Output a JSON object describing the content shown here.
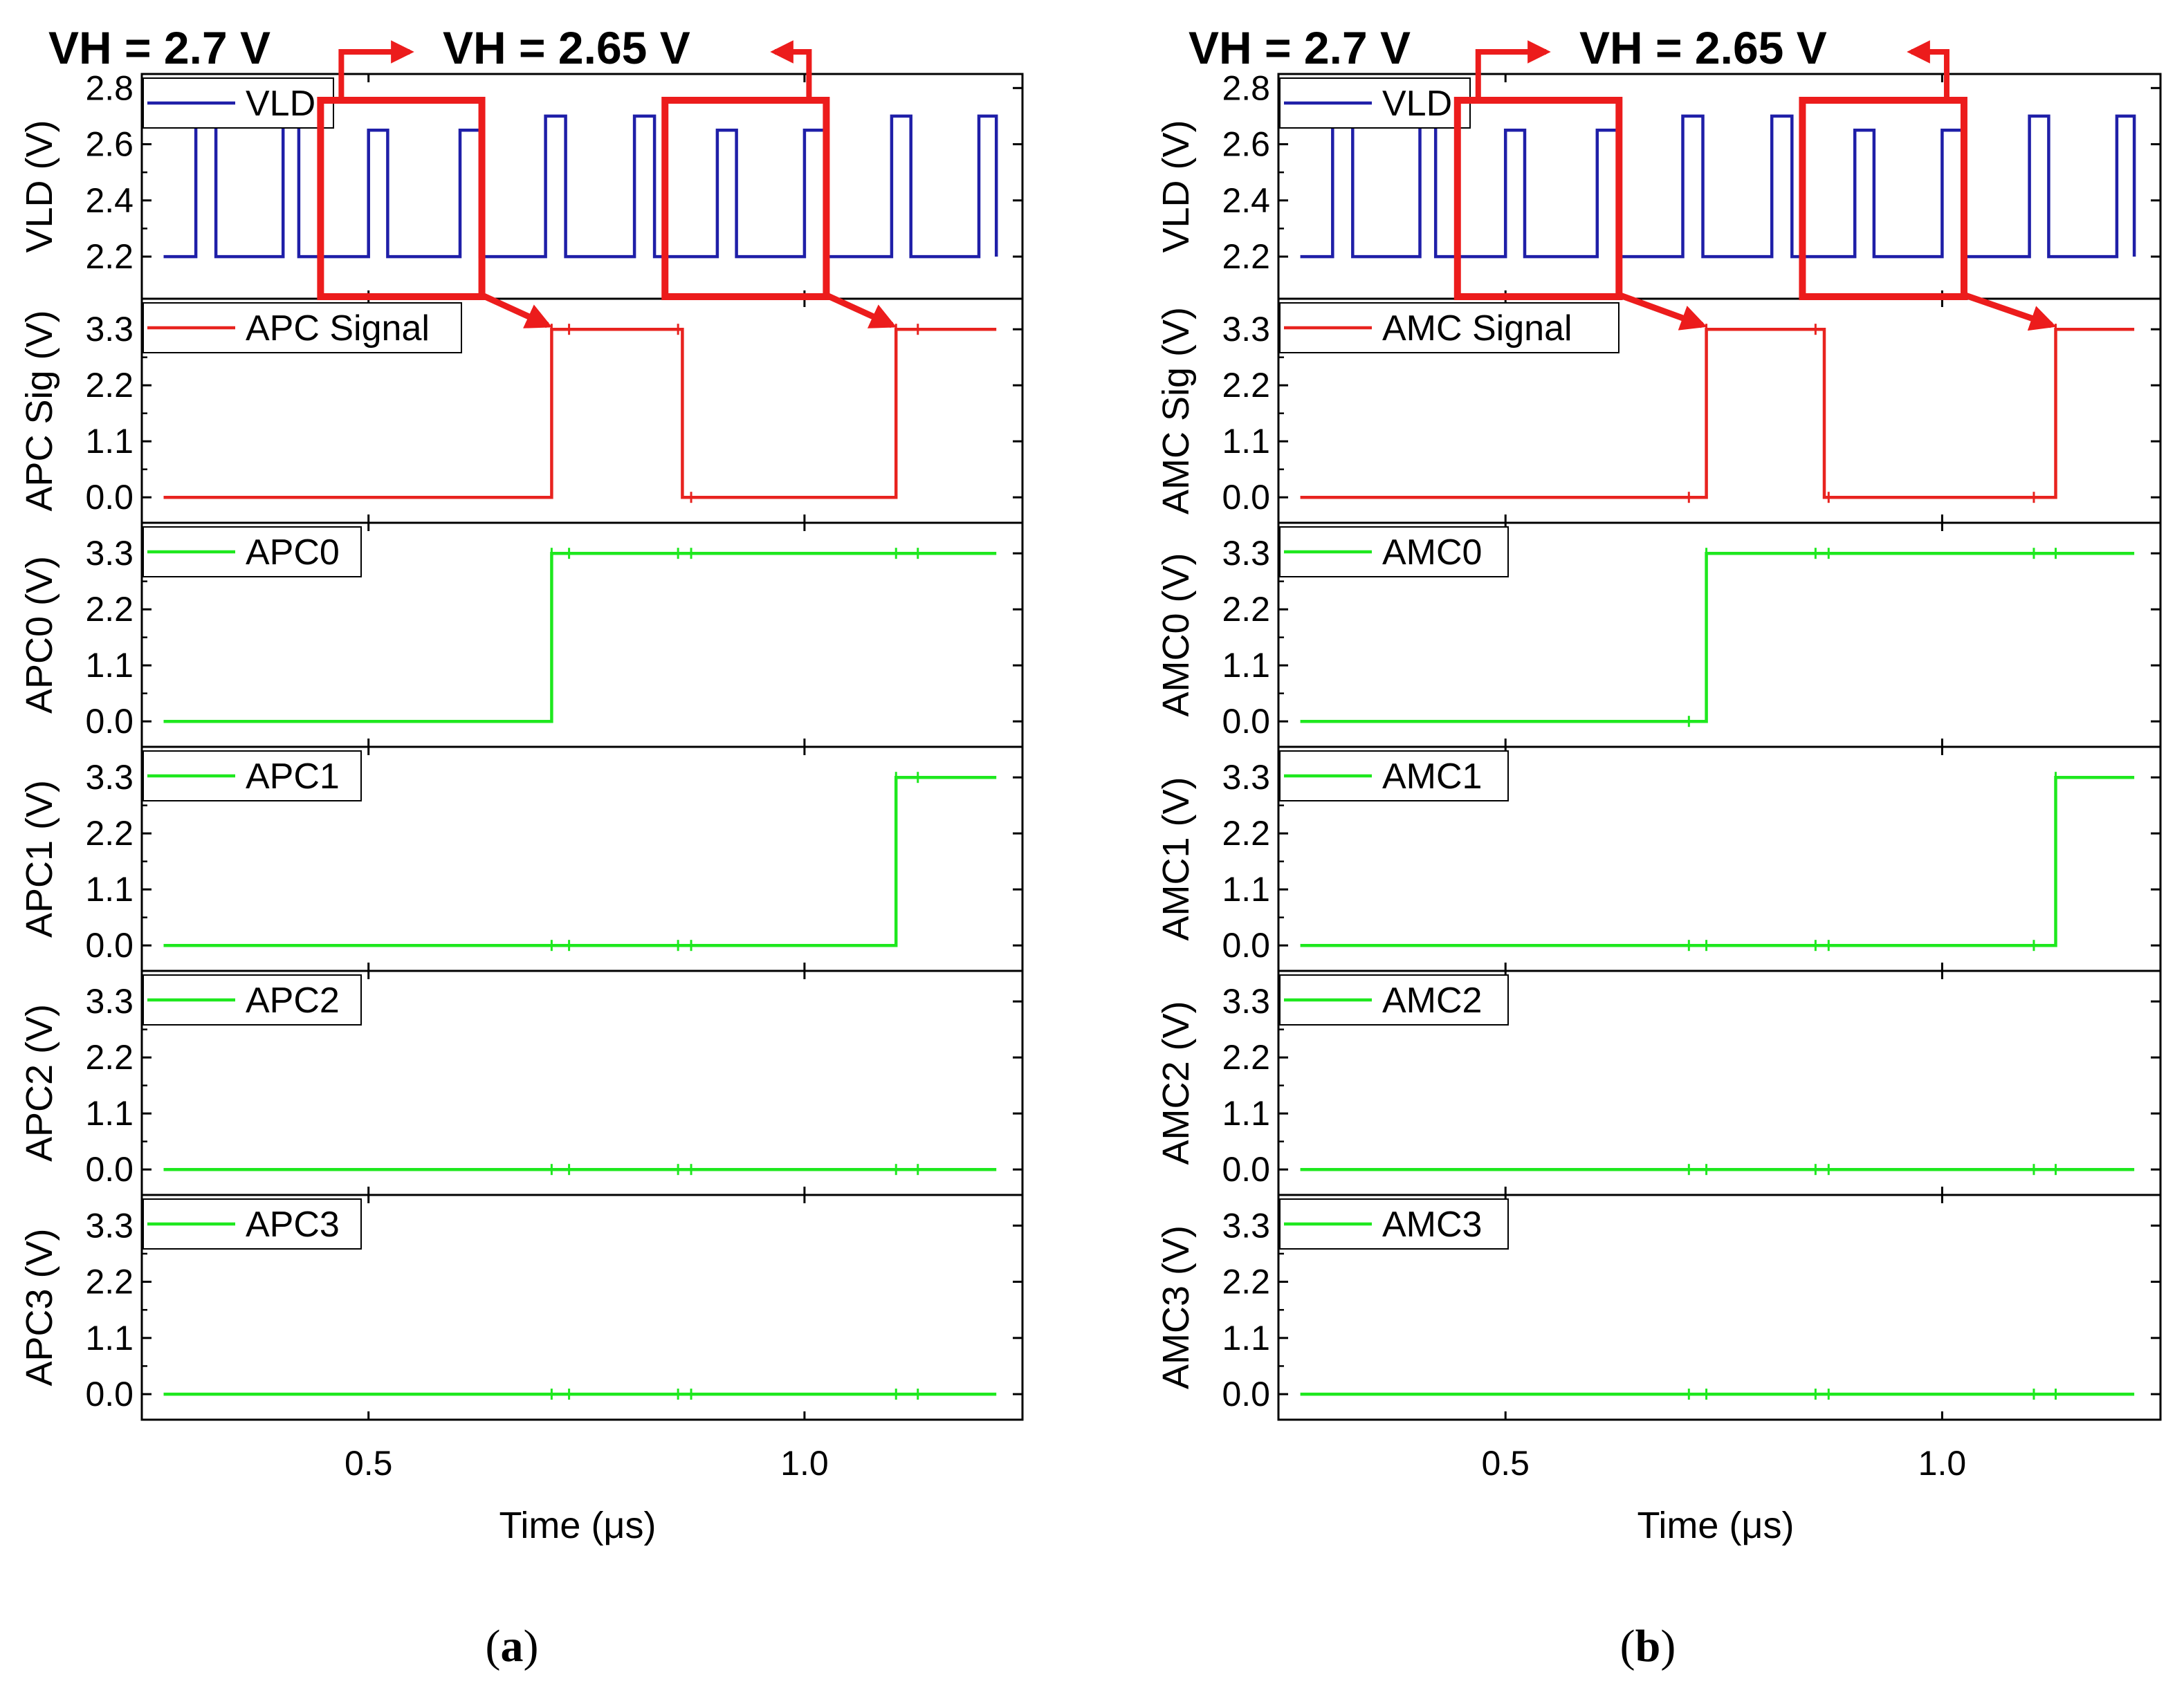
{
  "figure": {
    "captions": [
      "(a)",
      "(b)"
    ],
    "colors": {
      "vld": "#1f1fa8",
      "signal": "#e8231f",
      "bit": "#1ee81e",
      "highlight": "#ec1c1c",
      "axis": "#000000"
    }
  },
  "chart_data": [
    {
      "panel": "a",
      "caption_letter": "a",
      "annotations": {
        "vh_left": "VH = 2.7 V",
        "vh_right": "VH = 2.65 V"
      },
      "highlight_windows_us": [
        [
          0.445,
          0.63
        ],
        [
          0.84,
          1.025
        ]
      ],
      "xaxis": {
        "title": "Time (μs)",
        "xlim": [
          0.24,
          1.25
        ],
        "ticks": [
          0.5,
          1.0
        ],
        "tick_labels": [
          "0.5",
          "1.0"
        ]
      },
      "rows": [
        {
          "id": "vld",
          "type": "line",
          "legend": "VLD",
          "ylabel": "VLD (V)",
          "color_key": "vld",
          "ylim": [
            2.05,
            2.85
          ],
          "yticks": [
            2.2,
            2.4,
            2.6,
            2.8
          ],
          "ytick_labels": [
            "2.2",
            "2.4",
            "2.6",
            "2.8"
          ],
          "low": 2.2,
          "pulses": [
            {
              "start": 0.302,
              "end": 0.325,
              "high": 2.7
            },
            {
              "start": 0.402,
              "end": 0.42,
              "high": 2.7
            },
            {
              "start": 0.5,
              "end": 0.522,
              "high": 2.65
            },
            {
              "start": 0.605,
              "end": 0.628,
              "high": 2.65
            },
            {
              "start": 0.703,
              "end": 0.726,
              "high": 2.7
            },
            {
              "start": 0.805,
              "end": 0.828,
              "high": 2.7
            },
            {
              "start": 0.9,
              "end": 0.922,
              "high": 2.65
            },
            {
              "start": 1.0,
              "end": 1.024,
              "high": 2.65
            },
            {
              "start": 1.1,
              "end": 1.122,
              "high": 2.7
            },
            {
              "start": 1.2,
              "end": 1.22,
              "high": 2.7
            }
          ],
          "x_start": 0.265,
          "x_end": 1.22
        },
        {
          "id": "signal",
          "type": "line",
          "legend": "APC Signal",
          "ylabel": "APC Sig (V)",
          "color_key": "signal",
          "ylim": [
            -0.5,
            3.9
          ],
          "yticks": [
            0.0,
            1.1,
            2.2,
            3.3
          ],
          "ytick_labels": [
            "0.0",
            "1.1",
            "2.2",
            "3.3"
          ],
          "steps": [
            [
              0.265,
              0.0
            ],
            [
              0.71,
              3.3
            ],
            [
              0.86,
              0.0
            ],
            [
              1.105,
              3.3
            ]
          ],
          "x_end": 1.22
        },
        {
          "id": "bit0",
          "type": "line",
          "legend": "APC0",
          "ylabel": "APC0 (V)",
          "color_key": "bit",
          "ylim": [
            -0.5,
            3.9
          ],
          "yticks": [
            0.0,
            1.1,
            2.2,
            3.3
          ],
          "ytick_labels": [
            "0.0",
            "1.1",
            "2.2",
            "3.3"
          ],
          "steps": [
            [
              0.265,
              0.0
            ],
            [
              0.71,
              3.3
            ]
          ],
          "x_end": 1.22
        },
        {
          "id": "bit1",
          "type": "line",
          "legend": "APC1",
          "ylabel": "APC1 (V)",
          "color_key": "bit",
          "ylim": [
            -0.5,
            3.9
          ],
          "yticks": [
            0.0,
            1.1,
            2.2,
            3.3
          ],
          "ytick_labels": [
            "0.0",
            "1.1",
            "2.2",
            "3.3"
          ],
          "steps": [
            [
              0.265,
              0.0
            ],
            [
              1.105,
              3.3
            ]
          ],
          "x_end": 1.22
        },
        {
          "id": "bit2",
          "type": "line",
          "legend": "APC2",
          "ylabel": "APC2 (V)",
          "color_key": "bit",
          "ylim": [
            -0.5,
            3.9
          ],
          "yticks": [
            0.0,
            1.1,
            2.2,
            3.3
          ],
          "ytick_labels": [
            "0.0",
            "1.1",
            "2.2",
            "3.3"
          ],
          "steps": [
            [
              0.265,
              0.0
            ]
          ],
          "x_end": 1.22
        },
        {
          "id": "bit3",
          "type": "line",
          "legend": "APC3",
          "ylabel": "APC3 (V)",
          "color_key": "bit",
          "ylim": [
            -0.5,
            3.9
          ],
          "yticks": [
            0.0,
            1.1,
            2.2,
            3.3
          ],
          "ytick_labels": [
            "0.0",
            "1.1",
            "2.2",
            "3.3"
          ],
          "steps": [
            [
              0.265,
              0.0
            ]
          ],
          "x_end": 1.22
        }
      ]
    },
    {
      "panel": "b",
      "caption_letter": "b",
      "annotations": {
        "vh_left": "VH = 2.7 V",
        "vh_right": "VH = 2.65 V"
      },
      "highlight_windows_us": [
        [
          0.445,
          0.63
        ],
        [
          0.84,
          1.025
        ]
      ],
      "xaxis": {
        "title": "Time (μs)",
        "xlim": [
          0.24,
          1.25
        ],
        "ticks": [
          0.5,
          1.0
        ],
        "tick_labels": [
          "0.5",
          "1.0"
        ]
      },
      "rows": [
        {
          "id": "vld",
          "type": "line",
          "legend": "VLD",
          "ylabel": "VLD (V)",
          "color_key": "vld",
          "ylim": [
            2.05,
            2.85
          ],
          "yticks": [
            2.2,
            2.4,
            2.6,
            2.8
          ],
          "ytick_labels": [
            "2.2",
            "2.4",
            "2.6",
            "2.8"
          ],
          "low": 2.2,
          "pulses": [
            {
              "start": 0.302,
              "end": 0.325,
              "high": 2.7
            },
            {
              "start": 0.402,
              "end": 0.42,
              "high": 2.7
            },
            {
              "start": 0.5,
              "end": 0.522,
              "high": 2.65
            },
            {
              "start": 0.605,
              "end": 0.628,
              "high": 2.65
            },
            {
              "start": 0.703,
              "end": 0.726,
              "high": 2.7
            },
            {
              "start": 0.805,
              "end": 0.828,
              "high": 2.7
            },
            {
              "start": 0.9,
              "end": 0.922,
              "high": 2.65
            },
            {
              "start": 1.0,
              "end": 1.024,
              "high": 2.65
            },
            {
              "start": 1.1,
              "end": 1.122,
              "high": 2.7
            },
            {
              "start": 1.2,
              "end": 1.22,
              "high": 2.7
            }
          ],
          "x_start": 0.265,
          "x_end": 1.22
        },
        {
          "id": "signal",
          "type": "line",
          "legend": "AMC Signal",
          "ylabel": "AMC Sig (V)",
          "color_key": "signal",
          "ylim": [
            -0.5,
            3.9
          ],
          "yticks": [
            0.0,
            1.1,
            2.2,
            3.3
          ],
          "ytick_labels": [
            "0.0",
            "1.1",
            "2.2",
            "3.3"
          ],
          "steps": [
            [
              0.265,
              0.0
            ],
            [
              0.73,
              3.3
            ],
            [
              0.865,
              0.0
            ],
            [
              1.13,
              3.3
            ]
          ],
          "x_end": 1.22
        },
        {
          "id": "bit0",
          "type": "line",
          "legend": "AMC0",
          "ylabel": "AMC0 (V)",
          "color_key": "bit",
          "ylim": [
            -0.5,
            3.9
          ],
          "yticks": [
            0.0,
            1.1,
            2.2,
            3.3
          ],
          "ytick_labels": [
            "0.0",
            "1.1",
            "2.2",
            "3.3"
          ],
          "steps": [
            [
              0.265,
              0.0
            ],
            [
              0.73,
              3.3
            ]
          ],
          "x_end": 1.22
        },
        {
          "id": "bit1",
          "type": "line",
          "legend": "AMC1",
          "ylabel": "AMC1 (V)",
          "color_key": "bit",
          "ylim": [
            -0.5,
            3.9
          ],
          "yticks": [
            0.0,
            1.1,
            2.2,
            3.3
          ],
          "ytick_labels": [
            "0.0",
            "1.1",
            "2.2",
            "3.3"
          ],
          "steps": [
            [
              0.265,
              0.0
            ],
            [
              1.13,
              3.3
            ]
          ],
          "x_end": 1.22
        },
        {
          "id": "bit2",
          "type": "line",
          "legend": "AMC2",
          "ylabel": "AMC2 (V)",
          "color_key": "bit",
          "ylim": [
            -0.5,
            3.9
          ],
          "yticks": [
            0.0,
            1.1,
            2.2,
            3.3
          ],
          "ytick_labels": [
            "0.0",
            "1.1",
            "2.2",
            "3.3"
          ],
          "steps": [
            [
              0.265,
              0.0
            ]
          ],
          "x_end": 1.22
        },
        {
          "id": "bit3",
          "type": "line",
          "legend": "AMC3",
          "ylabel": "AMC3 (V)",
          "color_key": "bit",
          "ylim": [
            -0.5,
            3.9
          ],
          "yticks": [
            0.0,
            1.1,
            2.2,
            3.3
          ],
          "ytick_labels": [
            "0.0",
            "1.1",
            "2.2",
            "3.3"
          ],
          "steps": [
            [
              0.265,
              0.0
            ]
          ],
          "x_end": 1.22
        }
      ]
    }
  ]
}
